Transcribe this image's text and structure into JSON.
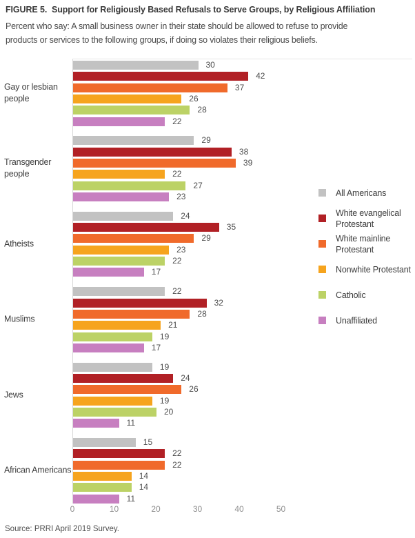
{
  "header": {
    "title": "FIGURE 5.  Support for Religiously Based Refusals to Serve Groups, by Religious Affiliation",
    "subtitle_lines": [
      "Percent who say: A small business owner in their state should be allowed to refuse to provide",
      "products or services to the following groups, if doing so violates their religious beliefs."
    ]
  },
  "chart_data": {
    "type": "bar",
    "orientation": "horizontal",
    "unit": "percent",
    "categories": [
      "Gay or lesbian people",
      "Transgender people",
      "Atheists",
      "Muslims",
      "Jews",
      "African Americans"
    ],
    "category_label_lines": [
      [
        "Gay or lesbian",
        "people"
      ],
      [
        "Transgender",
        "people"
      ],
      [
        "Atheists"
      ],
      [
        "Muslims"
      ],
      [
        "Jews"
      ],
      [
        "African Americans"
      ]
    ],
    "series": [
      {
        "name": "All Americans",
        "label_lines": [
          "All Americans"
        ],
        "color": "#C2C2C2",
        "values": [
          30,
          29,
          24,
          22,
          19,
          15
        ]
      },
      {
        "name": "White evangelical Protestant",
        "label_lines": [
          "White evangelical",
          "Protestant"
        ],
        "color": "#B12025",
        "values": [
          42,
          38,
          35,
          32,
          24,
          22
        ]
      },
      {
        "name": "White mainline Protestant",
        "label_lines": [
          "White mainline",
          "Protestant"
        ],
        "color": "#F06A2B",
        "values": [
          37,
          39,
          29,
          28,
          26,
          22
        ]
      },
      {
        "name": "Nonwhite Protestant",
        "label_lines": [
          "Nonwhite Protestant"
        ],
        "color": "#F6A41E",
        "values": [
          26,
          22,
          23,
          21,
          19,
          14
        ]
      },
      {
        "name": "Catholic",
        "label_lines": [
          "Catholic"
        ],
        "color": "#BCD266",
        "values": [
          28,
          27,
          22,
          19,
          20,
          14
        ]
      },
      {
        "name": "Unaffiliated",
        "label_lines": [
          "Unaffiliated"
        ],
        "color": "#C77FC0",
        "values": [
          22,
          23,
          17,
          17,
          11,
          11
        ]
      }
    ],
    "x_ticks": [
      0,
      10,
      20,
      30,
      40,
      50
    ],
    "xlim": [
      0,
      50
    ],
    "grid": "none",
    "legend_position": "right",
    "value_labels": "outside-end",
    "axis_color": "#D8D8D8",
    "tick_label_color": "#8E8E8E",
    "value_label_color": "#4D4D4D"
  },
  "footer": {
    "source": "Source: PRRI April 2019 Survey."
  }
}
